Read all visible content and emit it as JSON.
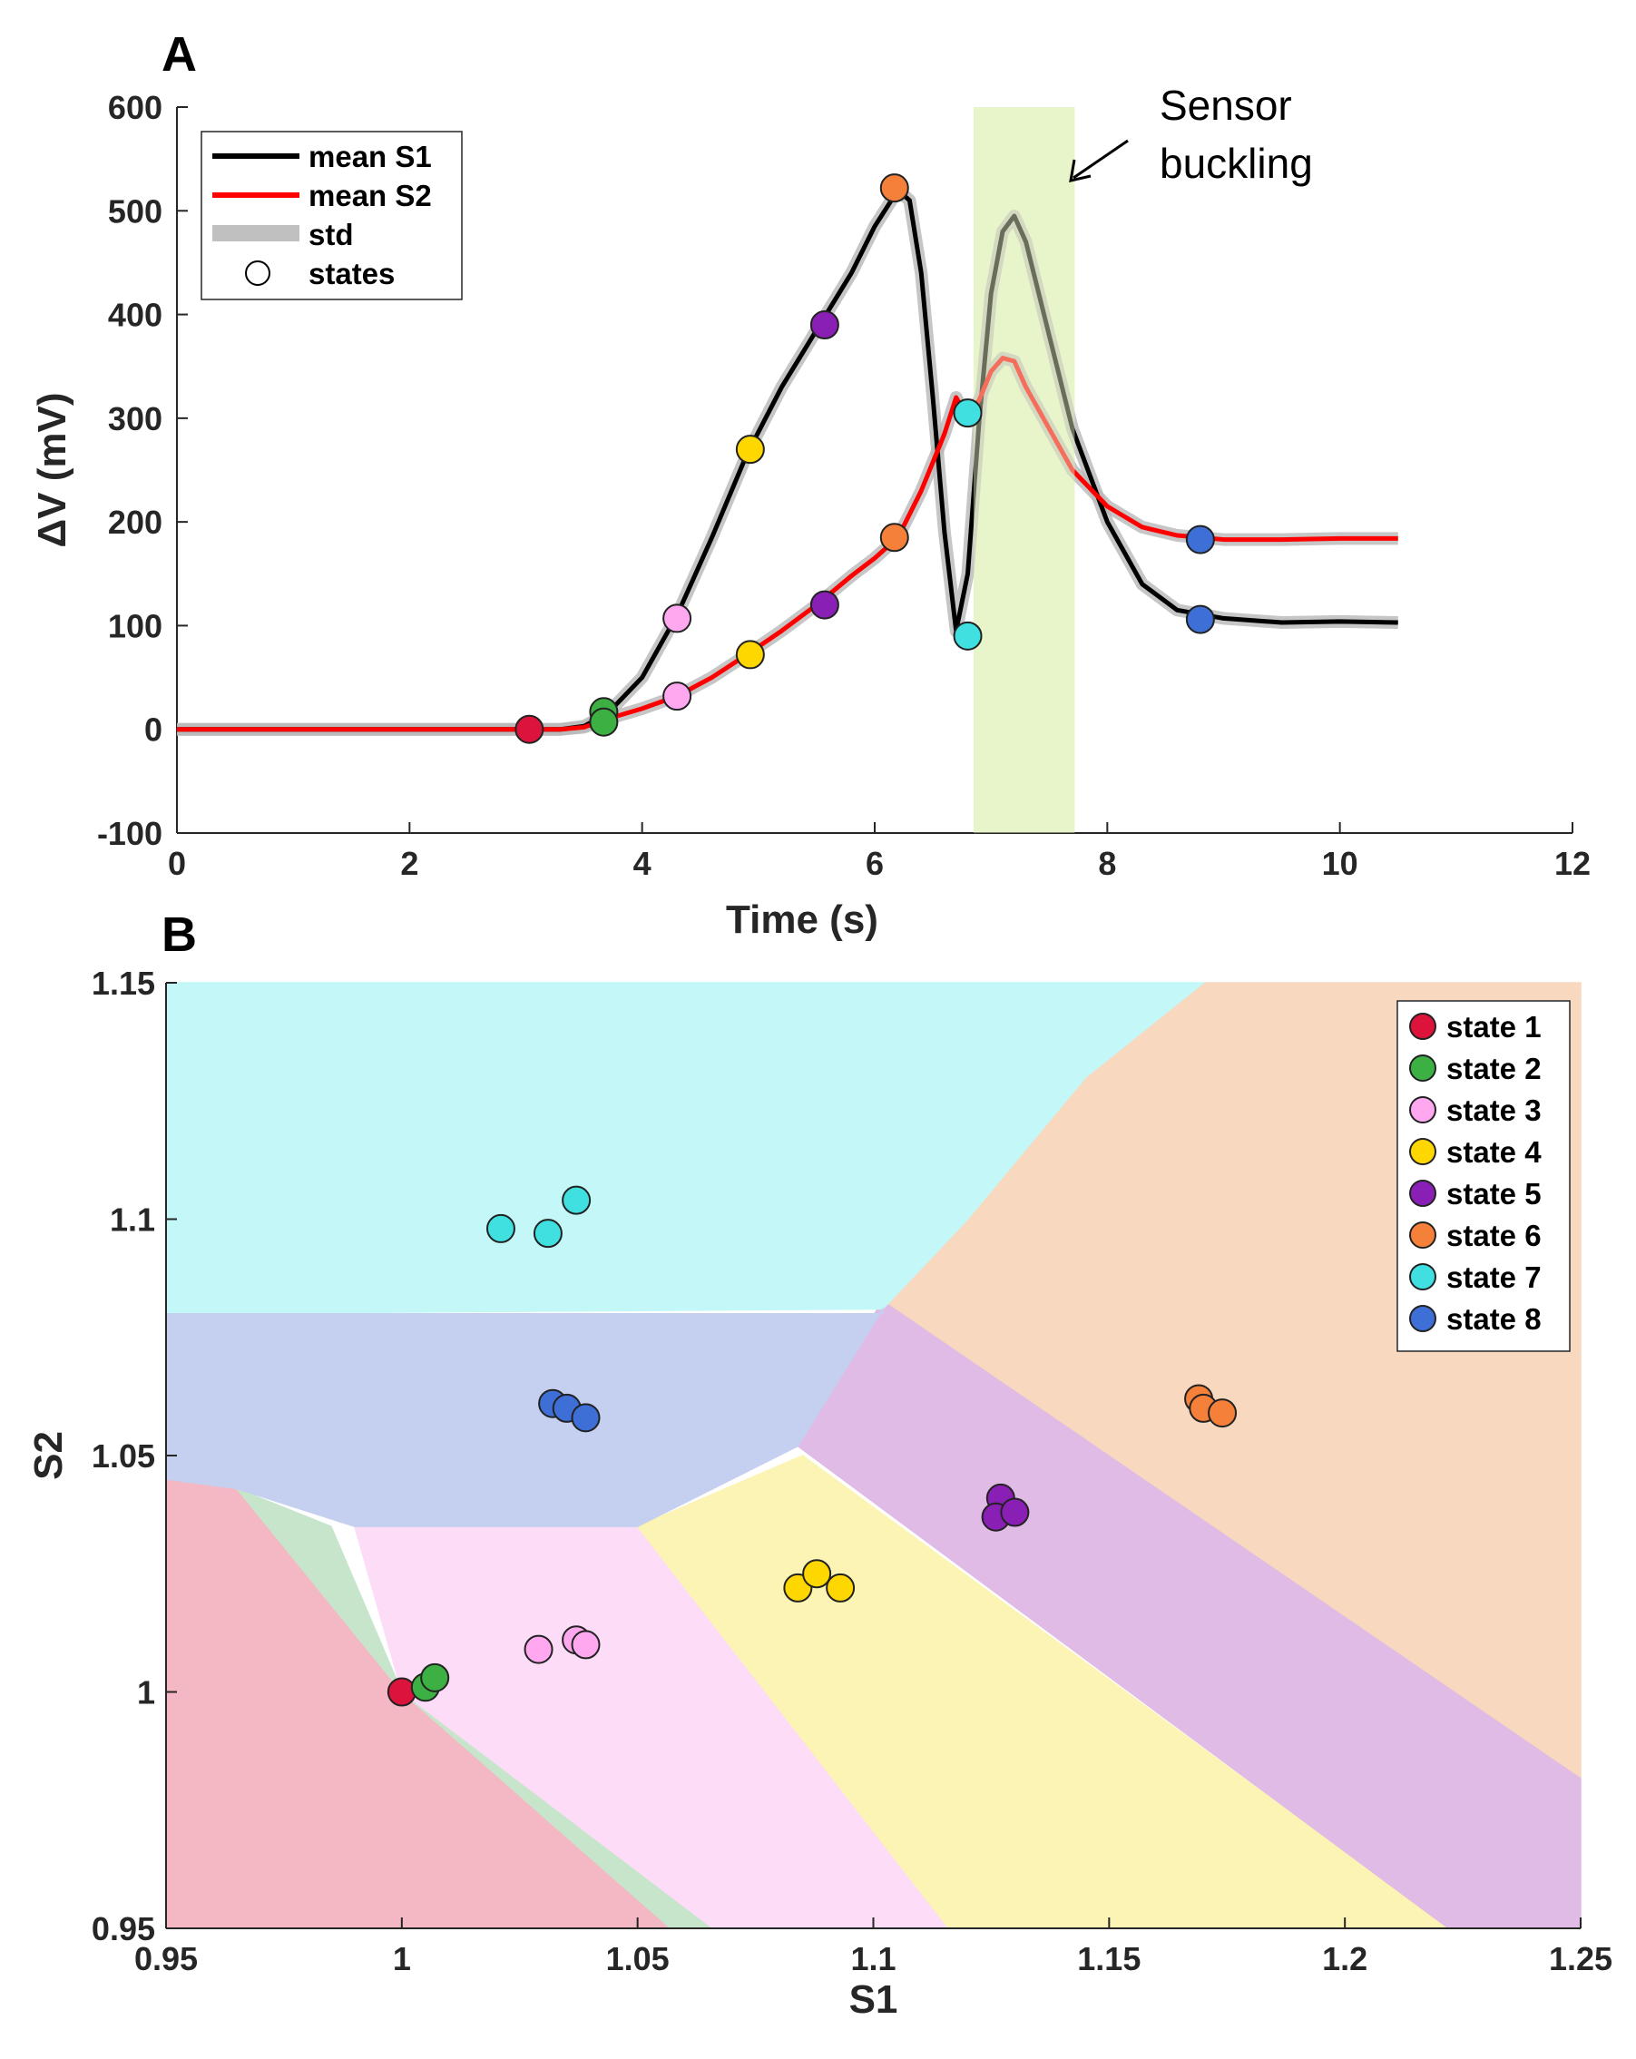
{
  "chart_data": [
    {
      "panel": "A",
      "type": "line",
      "xlabel": "Time (s)",
      "ylabel": "ΔV (mV)",
      "xlim": [
        0,
        12
      ],
      "ylim": [
        -100,
        600
      ],
      "xticks": [
        0,
        2,
        4,
        6,
        8,
        10,
        12
      ],
      "yticks": [
        -100,
        0,
        100,
        200,
        300,
        400,
        500,
        600
      ],
      "shaded_region": {
        "x": [
          6.85,
          7.72
        ],
        "color": "#e8f5c9"
      },
      "annotation": {
        "line1": "Sensor",
        "line2": "buckling"
      },
      "legend": [
        "mean S1",
        "mean S2",
        "std",
        "states"
      ],
      "series": [
        {
          "name": "mean S1",
          "color": "#000000",
          "x": [
            0,
            1,
            2,
            3,
            3.3,
            3.5,
            3.7,
            4.0,
            4.3,
            4.6,
            4.9,
            5.2,
            5.5,
            5.8,
            6.0,
            6.2,
            6.3,
            6.4,
            6.5,
            6.6,
            6.7,
            6.8,
            6.9,
            7.0,
            7.1,
            7.2,
            7.3,
            7.5,
            7.7,
            8.0,
            8.3,
            8.6,
            9.0,
            9.5,
            10.0,
            10.5
          ],
          "y": [
            0,
            0,
            0,
            0,
            0,
            3,
            15,
            50,
            110,
            185,
            265,
            330,
            385,
            440,
            485,
            520,
            510,
            440,
            320,
            190,
            95,
            150,
            300,
            420,
            480,
            495,
            470,
            380,
            290,
            200,
            140,
            115,
            107,
            103,
            104,
            103
          ]
        },
        {
          "name": "mean S2",
          "color": "#ff0000",
          "x": [
            0,
            1,
            2,
            3,
            3.3,
            3.5,
            3.7,
            4.0,
            4.3,
            4.6,
            4.9,
            5.2,
            5.5,
            5.8,
            6.0,
            6.2,
            6.4,
            6.6,
            6.7,
            6.8,
            6.9,
            7.0,
            7.1,
            7.2,
            7.3,
            7.5,
            7.7,
            8.0,
            8.3,
            8.6,
            9.0,
            9.5,
            10.0,
            10.5
          ],
          "y": [
            0,
            0,
            0,
            0,
            0,
            2,
            10,
            20,
            32,
            50,
            72,
            95,
            120,
            148,
            165,
            185,
            230,
            285,
            320,
            300,
            318,
            345,
            358,
            355,
            330,
            290,
            250,
            215,
            195,
            187,
            183,
            183,
            184,
            184
          ]
        }
      ],
      "states": [
        {
          "state": 1,
          "x": 3.03,
          "y": 0,
          "color": "#dc143c"
        },
        {
          "state": 2,
          "x": 3.67,
          "y": 17,
          "color": "#3cb043"
        },
        {
          "state": 2,
          "x": 3.67,
          "y": 7,
          "color": "#3cb043"
        },
        {
          "state": 3,
          "x": 4.3,
          "y": 107,
          "color": "#ffa8f0"
        },
        {
          "state": 3,
          "x": 4.3,
          "y": 32,
          "color": "#ffa8f0"
        },
        {
          "state": 4,
          "x": 4.93,
          "y": 270,
          "color": "#ffd700"
        },
        {
          "state": 4,
          "x": 4.93,
          "y": 72,
          "color": "#ffd700"
        },
        {
          "state": 5,
          "x": 5.57,
          "y": 390,
          "color": "#8a1fb5"
        },
        {
          "state": 5,
          "x": 5.57,
          "y": 120,
          "color": "#8a1fb5"
        },
        {
          "state": 6,
          "x": 6.17,
          "y": 522,
          "color": "#f4803a"
        },
        {
          "state": 6,
          "x": 6.17,
          "y": 185,
          "color": "#f4803a"
        },
        {
          "state": 7,
          "x": 6.8,
          "y": 305,
          "color": "#40e0e0"
        },
        {
          "state": 7,
          "x": 6.8,
          "y": 90,
          "color": "#40e0e0"
        },
        {
          "state": 8,
          "x": 8.8,
          "y": 183,
          "color": "#3d6fd6"
        },
        {
          "state": 8,
          "x": 8.8,
          "y": 106,
          "color": "#3d6fd6"
        }
      ]
    },
    {
      "panel": "B",
      "type": "scatter",
      "xlabel": "S1",
      "ylabel": "S2",
      "xlim": [
        0.95,
        1.25
      ],
      "ylim": [
        0.95,
        1.15
      ],
      "xticks": [
        0.95,
        1,
        1.05,
        1.1,
        1.15,
        1.2,
        1.25
      ],
      "xtick_labels": [
        "0.95",
        "1",
        "1.05",
        "1.1",
        "1.15",
        "1.2",
        "1.25"
      ],
      "yticks": [
        0.95,
        1,
        1.05,
        1.1,
        1.15
      ],
      "ytick_labels": [
        "0.95",
        "1",
        "1.05",
        "1.1",
        "1.15"
      ],
      "legend_position": "top-right",
      "regions": [
        {
          "state": 1,
          "color": "#f4b7c4",
          "polygon": [
            [
              0.95,
              0.95
            ],
            [
              1.065,
              0.95
            ],
            [
              1.0,
              1.0
            ],
            [
              0.965,
              1.043
            ],
            [
              0.95,
              1.045
            ]
          ]
        },
        {
          "state": 2,
          "color": "#c6e5cb",
          "polygon": [
            [
              1.057,
              0.95
            ],
            [
              1.066,
              0.95
            ],
            [
              1.0,
              1.0
            ],
            [
              0.985,
              1.035
            ],
            [
              0.965,
              1.043
            ],
            [
              1.0,
              1.0
            ]
          ]
        },
        {
          "state": 3,
          "color": "#fcdcf6",
          "polygon": [
            [
              1.066,
              0.95
            ],
            [
              1.116,
              0.95
            ],
            [
              1.05,
              1.035
            ],
            [
              0.99,
              1.035
            ],
            [
              1.0,
              1.0
            ]
          ]
        },
        {
          "state": 4,
          "color": "#fcf4b5",
          "polygon": [
            [
              1.116,
              0.95
            ],
            [
              1.222,
              0.95
            ],
            [
              1.085,
              1.05
            ],
            [
              1.05,
              1.035
            ]
          ]
        },
        {
          "state": 5,
          "color": "#dfbbe6",
          "polygon": [
            [
              1.222,
              0.95
            ],
            [
              1.25,
              0.95
            ],
            [
              1.25,
              0.982
            ],
            [
              1.102,
              1.083
            ],
            [
              1.084,
              1.052
            ]
          ]
        },
        {
          "state": 6,
          "color": "#f9d8c0",
          "polygon": [
            [
              1.25,
              0.982
            ],
            [
              1.25,
              1.15
            ],
            [
              1.17,
              1.15
            ],
            [
              1.145,
              1.13
            ],
            [
              1.12,
              1.1
            ],
            [
              1.102,
              1.083
            ]
          ]
        },
        {
          "state": 7,
          "color": "#c4f7f7",
          "polygon": [
            [
              0.95,
              1.08
            ],
            [
              1.102,
              1.081
            ],
            [
              1.12,
              1.1
            ],
            [
              1.145,
              1.13
            ],
            [
              1.17,
              1.15
            ],
            [
              0.95,
              1.15
            ]
          ]
        },
        {
          "state": 8,
          "color": "#c5cfef",
          "polygon": [
            [
              0.95,
              1.045
            ],
            [
              0.965,
              1.043
            ],
            [
              0.99,
              1.035
            ],
            [
              1.05,
              1.035
            ],
            [
              1.084,
              1.052
            ],
            [
              1.102,
              1.081
            ],
            [
              1.102,
              1.08
            ],
            [
              0.95,
              1.08
            ]
          ]
        }
      ],
      "points": [
        {
          "state": 1,
          "x": 1.0,
          "y": 1.0
        },
        {
          "state": 2,
          "x": 1.005,
          "y": 1.001
        },
        {
          "state": 2,
          "x": 1.007,
          "y": 1.003
        },
        {
          "state": 3,
          "x": 1.029,
          "y": 1.009
        },
        {
          "state": 3,
          "x": 1.037,
          "y": 1.011
        },
        {
          "state": 3,
          "x": 1.039,
          "y": 1.01
        },
        {
          "state": 4,
          "x": 1.084,
          "y": 1.022
        },
        {
          "state": 4,
          "x": 1.088,
          "y": 1.025
        },
        {
          "state": 4,
          "x": 1.093,
          "y": 1.022
        },
        {
          "state": 5,
          "x": 1.127,
          "y": 1.041
        },
        {
          "state": 5,
          "x": 1.126,
          "y": 1.037
        },
        {
          "state": 5,
          "x": 1.13,
          "y": 1.038
        },
        {
          "state": 6,
          "x": 1.169,
          "y": 1.062
        },
        {
          "state": 6,
          "x": 1.17,
          "y": 1.06
        },
        {
          "state": 6,
          "x": 1.174,
          "y": 1.059
        },
        {
          "state": 7,
          "x": 1.021,
          "y": 1.098
        },
        {
          "state": 7,
          "x": 1.031,
          "y": 1.097
        },
        {
          "state": 7,
          "x": 1.037,
          "y": 1.104
        },
        {
          "state": 8,
          "x": 1.032,
          "y": 1.061
        },
        {
          "state": 8,
          "x": 1.035,
          "y": 1.06
        },
        {
          "state": 8,
          "x": 1.039,
          "y": 1.058
        }
      ],
      "legend": [
        {
          "label": "state 1",
          "color": "#dc143c"
        },
        {
          "label": "state 2",
          "color": "#3cb043"
        },
        {
          "label": "state 3",
          "color": "#ffa8f0"
        },
        {
          "label": "state 4",
          "color": "#ffd700"
        },
        {
          "label": "state 5",
          "color": "#8a1fb5"
        },
        {
          "label": "state 6",
          "color": "#f4803a"
        },
        {
          "label": "state 7",
          "color": "#40e0e0"
        },
        {
          "label": "state 8",
          "color": "#3d6fd6"
        }
      ]
    }
  ]
}
